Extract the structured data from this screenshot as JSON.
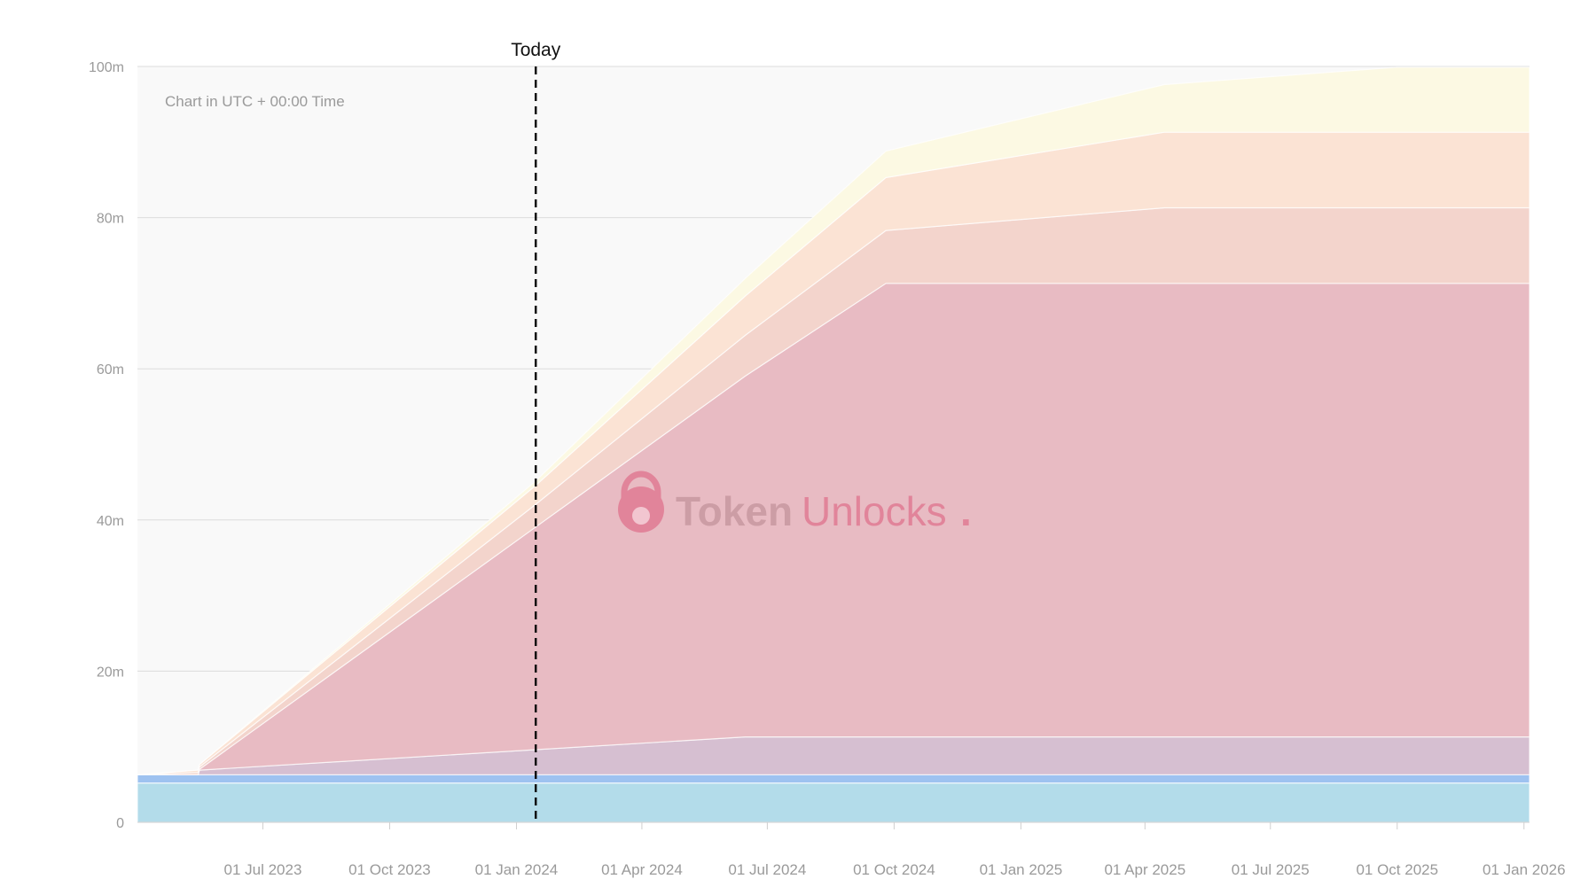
{
  "chart_data": {
    "type": "area",
    "stacked": true,
    "note": "Chart in UTC + 00:00 Time",
    "marker_label": "Today",
    "marker_date": "2024-01-15",
    "watermark": {
      "brand_bold": "Token",
      "brand_light": "Unlocks",
      "dot": "."
    },
    "ylim": [
      0,
      100
    ],
    "y_unit_suffix": "m",
    "y_ticks": [
      0,
      20,
      40,
      60,
      80,
      100
    ],
    "y_tick_labels": [
      "0",
      "20m",
      "40m",
      "60m",
      "80m",
      "100m"
    ],
    "x_range": [
      "2023-04-01",
      "2026-01-05"
    ],
    "x_ticks": [
      "2023-07-01",
      "2023-10-01",
      "2024-01-01",
      "2024-04-01",
      "2024-07-01",
      "2024-10-01",
      "2025-01-01",
      "2025-04-01",
      "2025-07-01",
      "2025-10-01",
      "2026-01-01"
    ],
    "x_tick_labels": [
      "01 Jul 2023",
      "01 Oct 2023",
      "01 Jan 2024",
      "01 Apr 2024",
      "01 Jul 2024",
      "01 Oct 2024",
      "01 Jan 2025",
      "01 Apr 2025",
      "01 Jul 2025",
      "01 Oct 2025",
      "01 Jan 2026"
    ],
    "grid": true,
    "series": [
      {
        "color": "#b3dcea",
        "points": [
          [
            "2023-04-01",
            5.2
          ],
          [
            "2026-01-05",
            5.2
          ]
        ]
      },
      {
        "color": "#9ec2f0",
        "points": [
          [
            "2023-04-01",
            1.1
          ],
          [
            "2026-01-05",
            1.1
          ]
        ]
      },
      {
        "color": "#d6bfd1",
        "points": [
          [
            "2023-04-01",
            0.0
          ],
          [
            "2023-05-15",
            0.0
          ],
          [
            "2023-05-16",
            0.6
          ],
          [
            "2024-06-15",
            5.0
          ],
          [
            "2026-01-05",
            5.0
          ]
        ]
      },
      {
        "color": "#e8bbc3",
        "points": [
          [
            "2023-04-01",
            0.0
          ],
          [
            "2023-05-15",
            0.0
          ],
          [
            "2024-09-25",
            60.0
          ],
          [
            "2026-01-05",
            60.0
          ]
        ]
      },
      {
        "color": "#f3d4cc",
        "points": [
          [
            "2023-04-01",
            0.0
          ],
          [
            "2023-05-15",
            0.3
          ],
          [
            "2024-01-15",
            3.0
          ],
          [
            "2024-09-25",
            7.0
          ],
          [
            "2025-04-15",
            10.0
          ],
          [
            "2026-01-05",
            10.0
          ]
        ]
      },
      {
        "color": "#fbe3d4",
        "points": [
          [
            "2023-04-01",
            0.0
          ],
          [
            "2023-05-15",
            0.3
          ],
          [
            "2024-01-15",
            2.5
          ],
          [
            "2024-09-25",
            7.0
          ],
          [
            "2025-04-15",
            10.0
          ],
          [
            "2026-01-05",
            10.0
          ]
        ]
      },
      {
        "color": "#fcf9e3",
        "points": [
          [
            "2023-04-01",
            0.0
          ],
          [
            "2023-05-15",
            0.0
          ],
          [
            "2024-01-15",
            0.6
          ],
          [
            "2024-09-25",
            3.5
          ],
          [
            "2025-04-15",
            6.3
          ],
          [
            "2025-10-01",
            8.6
          ],
          [
            "2026-01-05",
            8.6
          ]
        ]
      }
    ]
  }
}
